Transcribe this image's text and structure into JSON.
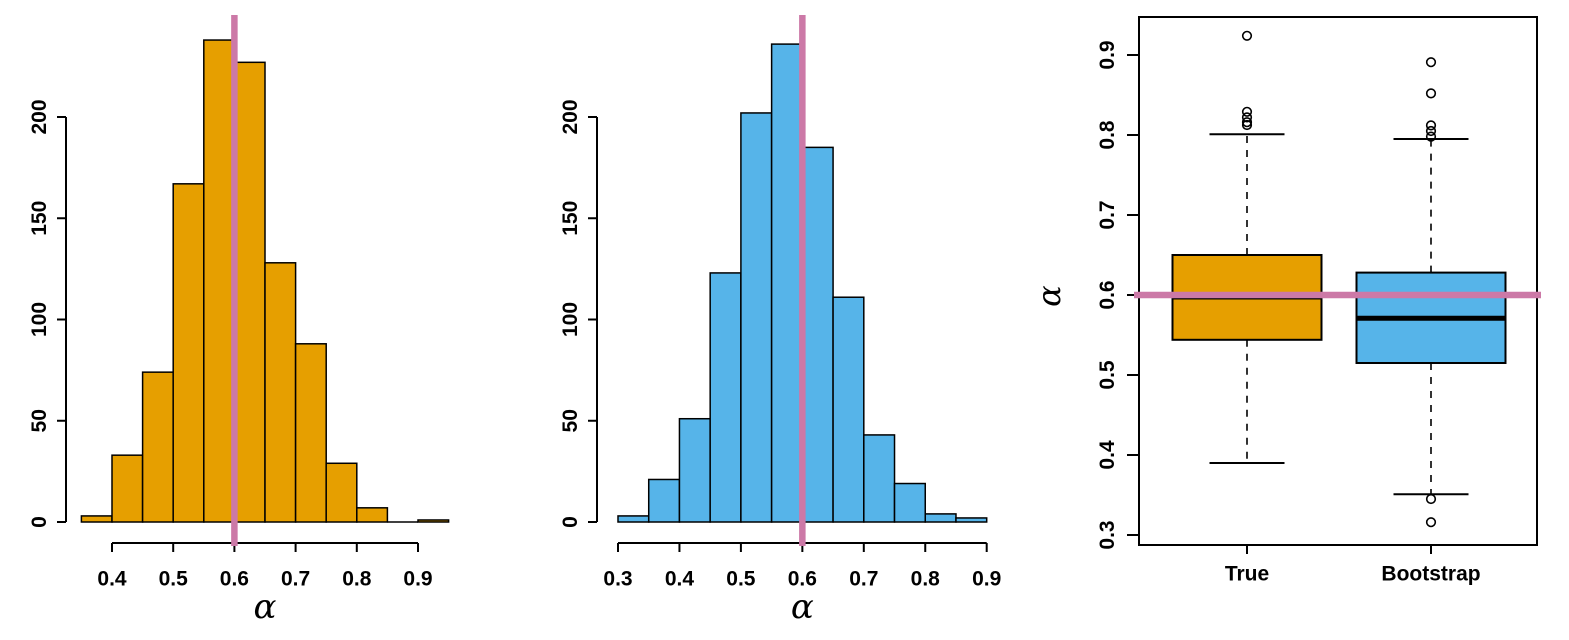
{
  "figure": {
    "description": "Three-panel figure: histogram of alpha estimates from true population, histogram of bootstrap alpha estimates, and comparative boxplots with reference line at alpha = 0.6",
    "background": "#ffffff"
  },
  "colors": {
    "true_orange": "#E69F00",
    "bootstrap_blue": "#56B4E9",
    "reference_pink": "#CC79A7",
    "axis_black": "#000000"
  },
  "chart_data": [
    {
      "type": "bar",
      "subtype": "histogram",
      "name": "true-population-alpha-histogram",
      "title": "",
      "xlabel": "α",
      "ylabel": "",
      "bar_color": "#E69F00",
      "bin_start": 0.35,
      "bin_width": 0.05,
      "bin_edges": [
        0.35,
        0.4,
        0.45,
        0.5,
        0.55,
        0.6,
        0.65,
        0.7,
        0.75,
        0.8,
        0.85,
        0.9,
        0.95
      ],
      "counts": [
        3,
        33,
        74,
        167,
        238,
        227,
        128,
        88,
        29,
        7,
        0,
        1
      ],
      "x_tick_values": [
        0.4,
        0.5,
        0.6,
        0.7,
        0.8,
        0.9
      ],
      "x_tick_labels": [
        "0.4",
        "0.5",
        "0.6",
        "0.7",
        "0.8",
        "0.9"
      ],
      "y_tick_values": [
        0,
        50,
        100,
        150,
        200
      ],
      "y_tick_labels": [
        "0",
        "50",
        "100",
        "150",
        "200"
      ],
      "xlim": [
        0.35,
        0.95
      ],
      "ylim": [
        0,
        245
      ],
      "grid": false,
      "ref_line": {
        "orientation": "vertical",
        "value": 0.6,
        "color": "#CC79A7"
      }
    },
    {
      "type": "bar",
      "subtype": "histogram",
      "name": "bootstrap-alpha-histogram",
      "title": "",
      "xlabel": "α",
      "ylabel": "",
      "bar_color": "#56B4E9",
      "bin_start": 0.3,
      "bin_width": 0.05,
      "bin_edges": [
        0.3,
        0.35,
        0.4,
        0.45,
        0.5,
        0.55,
        0.6,
        0.65,
        0.7,
        0.75,
        0.8,
        0.85,
        0.9
      ],
      "counts": [
        3,
        21,
        51,
        123,
        202,
        236,
        185,
        111,
        43,
        19,
        4,
        2
      ],
      "x_tick_values": [
        0.3,
        0.4,
        0.5,
        0.6,
        0.7,
        0.8,
        0.9
      ],
      "x_tick_labels": [
        "0.3",
        "0.4",
        "0.5",
        "0.6",
        "0.7",
        "0.8",
        "0.9"
      ],
      "y_tick_values": [
        0,
        50,
        100,
        150,
        200
      ],
      "y_tick_labels": [
        "0",
        "50",
        "100",
        "150",
        "200"
      ],
      "xlim": [
        0.3,
        0.9
      ],
      "ylim": [
        0,
        245
      ],
      "grid": false,
      "ref_line": {
        "orientation": "vertical",
        "value": 0.6,
        "color": "#CC79A7"
      }
    },
    {
      "type": "boxplot",
      "name": "true-vs-bootstrap-boxplot",
      "title": "",
      "xlabel": "",
      "ylabel": "α",
      "categories": [
        "True",
        "Bootstrap"
      ],
      "y_tick_values": [
        0.3,
        0.4,
        0.5,
        0.6,
        0.7,
        0.8,
        0.9
      ],
      "y_tick_labels": [
        "0.3",
        "0.4",
        "0.5",
        "0.6",
        "0.7",
        "0.8",
        "0.9"
      ],
      "ylim": [
        0.28,
        0.95
      ],
      "grid": false,
      "ref_line": {
        "orientation": "horizontal",
        "value": 0.6,
        "color": "#CC79A7"
      },
      "boxes": [
        {
          "label": "True",
          "fill": "#E69F00",
          "whisker_low": 0.39,
          "q1": 0.544,
          "median": 0.596,
          "q3": 0.65,
          "whisker_high": 0.801,
          "outliers": [
            0.8125,
            0.816,
            0.822,
            0.829,
            0.924
          ],
          "median_linewidth": 2.5
        },
        {
          "label": "Bootstrap",
          "fill": "#56B4E9",
          "whisker_low": 0.351,
          "q1": 0.515,
          "median": 0.571,
          "q3": 0.628,
          "whisker_high": 0.795,
          "outliers": [
            0.316,
            0.345,
            0.798,
            0.805,
            0.812,
            0.852,
            0.891
          ],
          "median_linewidth": 5
        }
      ]
    }
  ]
}
